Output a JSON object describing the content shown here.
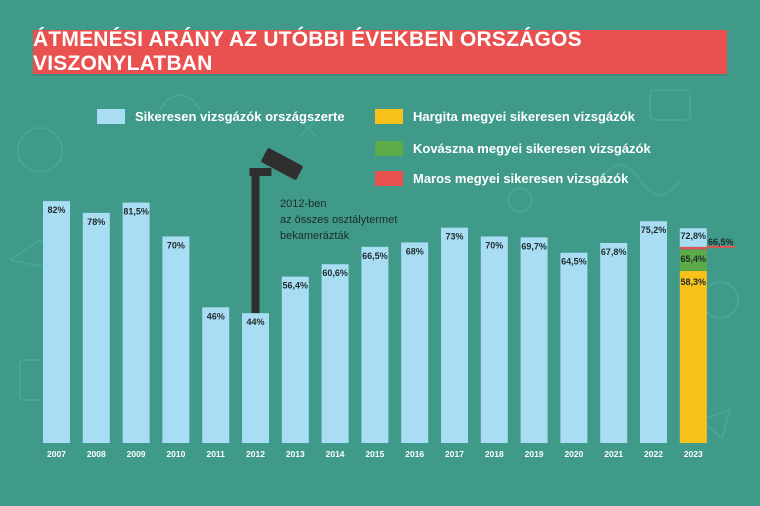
{
  "title": "ÁTMENÉSI ARÁNY AZ UTÓBBI ÉVEKBEN ORSZÁGOS VISZONYLATBAN",
  "legend": [
    {
      "label": "Sikeresen vizsgázók országszerte",
      "color": "#a9ddf3"
    },
    {
      "label": "Hargita megyei sikeresen vizsgázók",
      "color": "#f8c11c"
    },
    {
      "label": "Kovászna megyei sikeresen vizsgázók",
      "color": "#5cab48"
    },
    {
      "label": "Maros megyei sikeresen vizsgázók",
      "color": "#e8514f"
    }
  ],
  "annotation": [
    "2012-ben",
    "az összes osztálytermet",
    "bekamerázták"
  ],
  "chart_data": {
    "type": "bar",
    "title": "ÁTMENÉSI ARÁNY AZ UTÓBBI ÉVEKBEN ORSZÁGOS VISZONYLATBAN",
    "xlabel": "",
    "ylabel": "",
    "ylim": [
      0,
      100
    ],
    "grid": false,
    "legend_position": "top",
    "categories": [
      "2007",
      "2008",
      "2009",
      "2010",
      "2011",
      "2012",
      "2013",
      "2014",
      "2015",
      "2016",
      "2017",
      "2018",
      "2019",
      "2020",
      "2021",
      "2022",
      "2023"
    ],
    "series": [
      {
        "name": "Sikeresen vizsgázók országszerte",
        "color": "#a9ddf3",
        "values": [
          82,
          78,
          81.5,
          70,
          46,
          44,
          56.4,
          60.6,
          66.5,
          68,
          73,
          70,
          69.7,
          64.5,
          67.8,
          75.2,
          72.8
        ],
        "labels": [
          "82%",
          "78%",
          "81,5%",
          "70%",
          "46%",
          "44%",
          "56,4%",
          "60,6%",
          "66,5%",
          "68%",
          "73%",
          "70%",
          "69,7%",
          "64,5%",
          "67,8%",
          "75,2%",
          "72,8%"
        ]
      },
      {
        "name": "Hargita megyei sikeresen vizsgázók",
        "color": "#f8c11c",
        "category": "2023",
        "value": 58.3,
        "label": "58,3%"
      },
      {
        "name": "Kovászna megyei sikeresen vizsgázók",
        "color": "#5cab48",
        "category": "2023",
        "value": 65.4,
        "label": "65,4%"
      },
      {
        "name": "Maros megyei sikeresen vizsgázók",
        "color": "#e8514f",
        "category": "2023",
        "value": 66.5,
        "label": "66,5%"
      }
    ]
  }
}
